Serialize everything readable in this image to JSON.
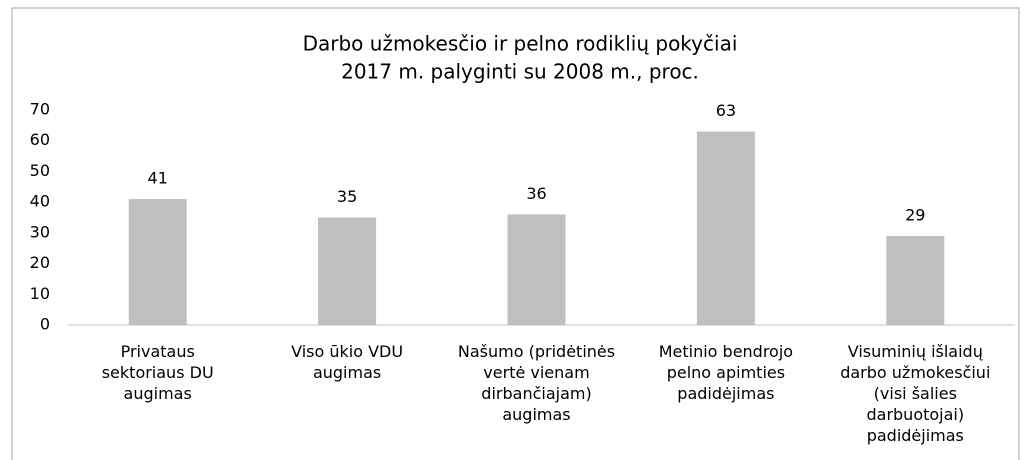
{
  "chart_data": {
    "type": "bar",
    "title": [
      "Darbo užmokesčio ir pelno rodiklių pokyčiai",
      "2017 m. palyginti su 2008 m., proc."
    ],
    "categories": [
      "Privataus sektoriaus DU augimas",
      "Viso ūkio VDU augimas",
      "Našumo (pridėtinės vertė vienam dirbančiajam) augimas",
      "Metinio bendrojo pelno apimties padidėjimas",
      "Visuminių išlaidų darbo užmokesčiui (visi šalies darbuotojai) padidėjimas"
    ],
    "values": [
      41,
      35,
      36,
      63,
      29
    ],
    "color": "#bfbfbf",
    "ylim": [
      0,
      70
    ],
    "yticks": [
      0,
      10,
      20,
      30,
      40,
      50,
      60,
      70
    ],
    "grid": false
  }
}
